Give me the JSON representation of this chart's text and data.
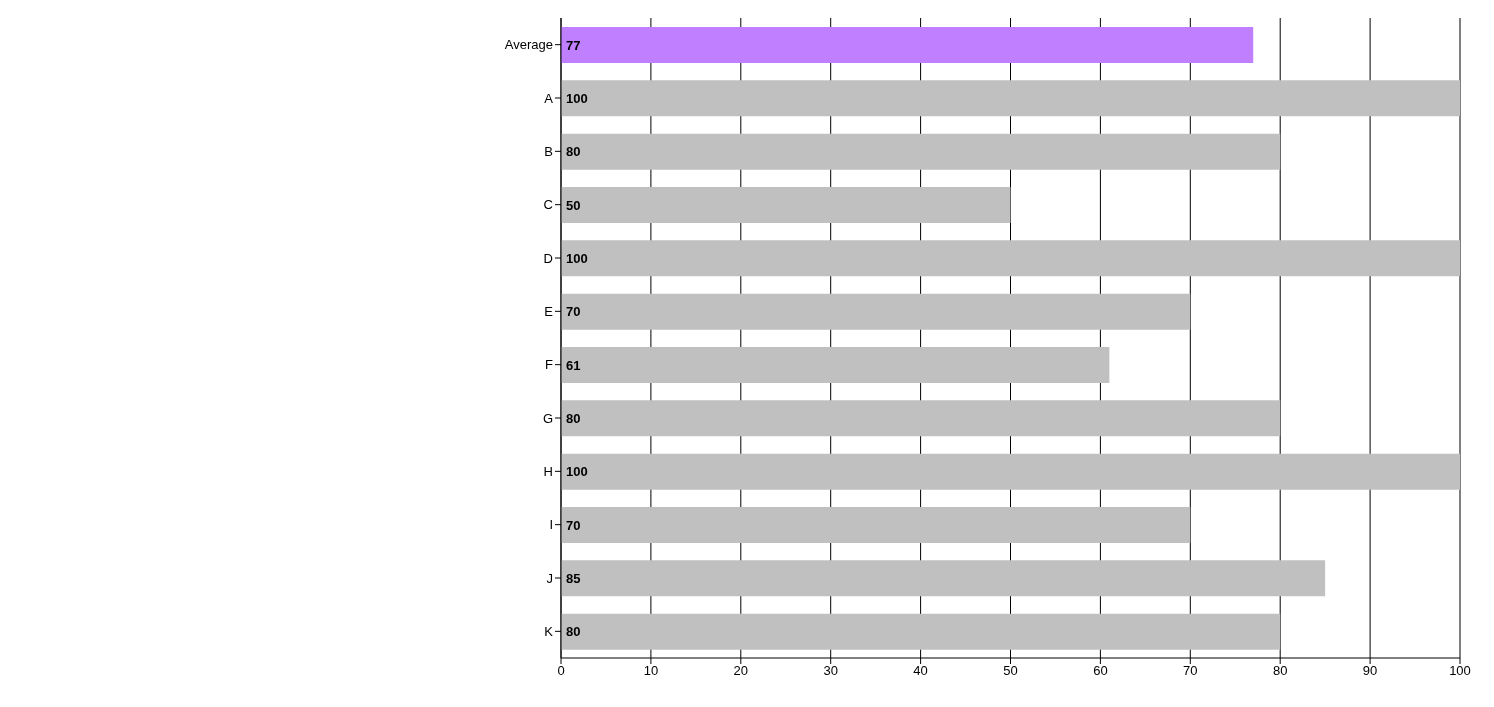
{
  "chart_data": {
    "type": "bar",
    "orientation": "horizontal",
    "categories": [
      "Average",
      "A",
      "B",
      "C",
      "D",
      "E",
      "F",
      "G",
      "H",
      "I",
      "J",
      "K"
    ],
    "values": [
      77,
      100,
      80,
      50,
      100,
      70,
      61,
      80,
      100,
      70,
      85,
      80
    ],
    "colors": [
      "#bf7fff",
      "#c0c0c0",
      "#c0c0c0",
      "#c0c0c0",
      "#c0c0c0",
      "#c0c0c0",
      "#c0c0c0",
      "#c0c0c0",
      "#c0c0c0",
      "#c0c0c0",
      "#c0c0c0",
      "#c0c0c0"
    ],
    "xlim": [
      0,
      100
    ],
    "xticks": [
      0,
      10,
      20,
      30,
      40,
      50,
      60,
      70,
      80,
      90,
      100
    ],
    "grid": "x",
    "legend": false,
    "data_labels": true
  }
}
